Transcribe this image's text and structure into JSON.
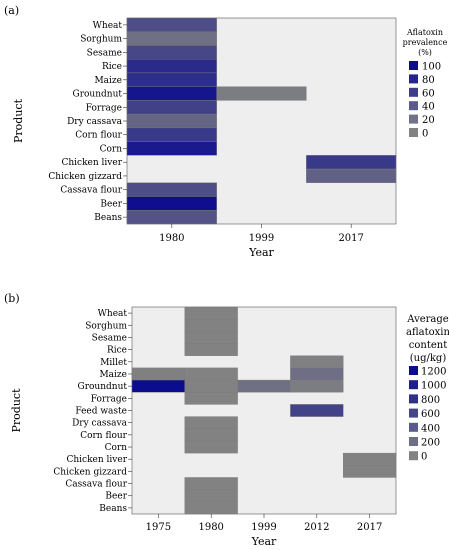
{
  "chart_data": [
    {
      "panel_label": "(a)",
      "type": "heatmap",
      "xlabel": "Year",
      "ylabel": "Product",
      "x": [
        "1980",
        "1999",
        "2017"
      ],
      "y": [
        "Wheat",
        "Sorghum",
        "Sesame",
        "Rice",
        "Maize",
        "Groundnut",
        "Forrage",
        "Dry cassava",
        "Corn flour",
        "Corn",
        "Chicken liver",
        "Chicken gizzard",
        "Cassava flour",
        "Beer",
        "Beans"
      ],
      "legend_title": [
        "Aflatoxin",
        "prevalence",
        "(%)"
      ],
      "legend_values": [
        "100",
        "80",
        "60",
        "40",
        "20",
        "0"
      ],
      "legend_colors": [
        "#0c0c8e",
        "#24248c",
        "#3d3d8a",
        "#5a5a8c",
        "#717189",
        "#828282"
      ],
      "color_range": [
        0,
        100
      ],
      "values": {
        "1980": {
          "Wheat": 45,
          "Sorghum": 15,
          "Sesame": 50,
          "Rice": 75,
          "Maize": 72,
          "Groundnut": 92,
          "Forrage": 55,
          "Dry cassava": 25,
          "Corn flour": 62,
          "Corn": 88,
          "Cassava flour": 45,
          "Beer": 98,
          "Beans": 40
        },
        "1999": {
          "Groundnut": 5
        },
        "2017": {
          "Chicken liver": 62,
          "Chicken gizzard": 28
        }
      },
      "grid": false
    },
    {
      "panel_label": "(b)",
      "type": "heatmap",
      "xlabel": "Year",
      "ylabel": "Product",
      "x": [
        "1975",
        "1980",
        "1999",
        "2012",
        "2017"
      ],
      "y": [
        "Wheat",
        "Sorghum",
        "Sesame",
        "Rice",
        "Millet",
        "Maize",
        "Groundnut",
        "Forrage",
        "Feed waste",
        "Dry cassava",
        "Corn flour",
        "Corn",
        "Chicken liver",
        "Chicken gizzard",
        "Cassava flour",
        "Beer",
        "Beans"
      ],
      "legend_title": [
        "Average",
        "aflatoxin",
        "content",
        "(ug/kg)"
      ],
      "legend_values": [
        "1200",
        "1000",
        "800",
        "600",
        "400",
        "200",
        "0"
      ],
      "legend_colors": [
        "#0c0c8e",
        "#1e1e8c",
        "#303089",
        "#45458a",
        "#5a5a8a",
        "#6e6e86",
        "#828282"
      ],
      "color_range": [
        0,
        1200
      ],
      "values": {
        "1975": {
          "Maize": 20,
          "Groundnut": 1200
        },
        "1980": {
          "Wheat": 0,
          "Sorghum": 0,
          "Sesame": 0,
          "Rice": 0,
          "Maize": 0,
          "Groundnut": 0,
          "Forrage": 0,
          "Dry cassava": 0,
          "Corn flour": 0,
          "Corn": 0,
          "Cassava flour": 0,
          "Beer": 0,
          "Beans": 0
        },
        "1999": {
          "Groundnut": 180
        },
        "2012": {
          "Millet": 20,
          "Maize": 200,
          "Groundnut": 60,
          "Feed waste": 650
        },
        "2017": {
          "Chicken liver": 0,
          "Chicken gizzard": 0
        }
      },
      "grid": false
    }
  ]
}
